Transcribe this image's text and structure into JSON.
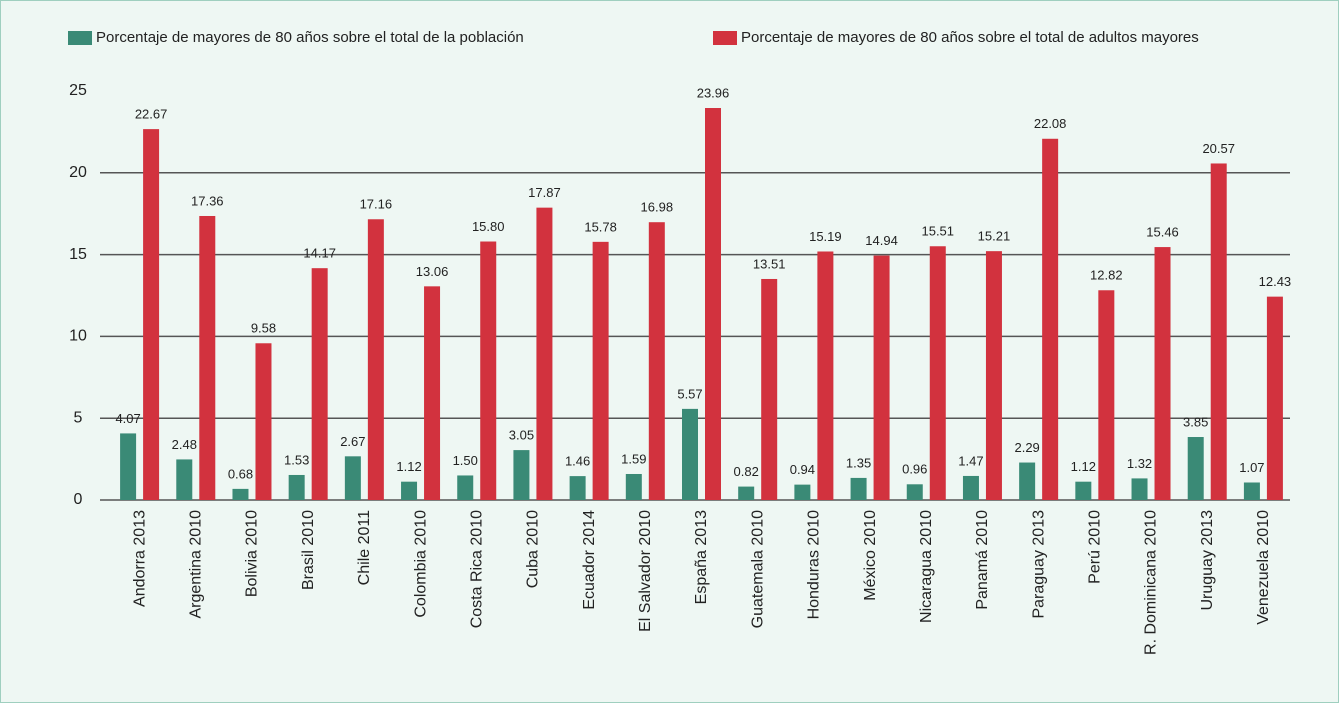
{
  "chart_data": {
    "type": "bar",
    "categories": [
      "Andorra 2013",
      "Argentina 2010",
      "Bolivia 2010",
      "Brasil 2010",
      "Chile 2011",
      "Colombia 2010",
      "Costa Rica 2010",
      "Cuba 2010",
      "Ecuador 2014",
      "El Salvador 2010",
      "España 2013",
      "Guatemala 2010",
      "Honduras 2010",
      "México 2010",
      "Nicaragua 2010",
      "Panamá 2010",
      "Paraguay 2013",
      "Perú 2010",
      "R. Dominicana 2010",
      "Uruguay 2013",
      "Venezuela 2010"
    ],
    "series": [
      {
        "name": "Porcentaje de mayores de 80 años sobre el total de la población",
        "color": "#3a8a76",
        "values": [
          4.07,
          2.48,
          0.68,
          1.53,
          2.67,
          1.12,
          1.5,
          3.05,
          1.46,
          1.59,
          5.57,
          0.82,
          0.94,
          1.35,
          0.96,
          1.47,
          2.29,
          1.12,
          1.32,
          3.85,
          1.07
        ],
        "value_labels": [
          "4.07",
          "2.48",
          "0.68",
          "1.53",
          "2.67",
          "1.12",
          "1.50",
          "3.05",
          "1.46",
          "1.59",
          "5.57",
          "0.82",
          "0.94",
          "1.35",
          "0.96",
          "1.47",
          "2.29",
          "1.12",
          "1.32",
          "3.85",
          "1.07"
        ]
      },
      {
        "name": "Porcentaje de mayores de 80 años sobre el total de adultos mayores",
        "color": "#d2323e",
        "values": [
          22.67,
          17.36,
          9.58,
          14.17,
          17.16,
          13.06,
          15.8,
          17.87,
          15.78,
          16.98,
          23.96,
          13.51,
          15.19,
          14.94,
          15.51,
          15.21,
          22.08,
          12.82,
          15.46,
          20.57,
          12.43
        ],
        "value_labels": [
          "22.67",
          "17.36",
          "9.58",
          "14.17",
          "17.16",
          "13.06",
          "15.80",
          "17.87",
          "15.78",
          "16.98",
          "23.96",
          "13.51",
          "15.19",
          "14.94",
          "15.51",
          "15.21",
          "22.08",
          "12.82",
          "15.46",
          "20.57",
          "12.43"
        ]
      }
    ],
    "ylim": [
      0,
      25
    ],
    "yticks": [
      0,
      5,
      10,
      15,
      20,
      25
    ],
    "grid": true,
    "legend": "top"
  }
}
